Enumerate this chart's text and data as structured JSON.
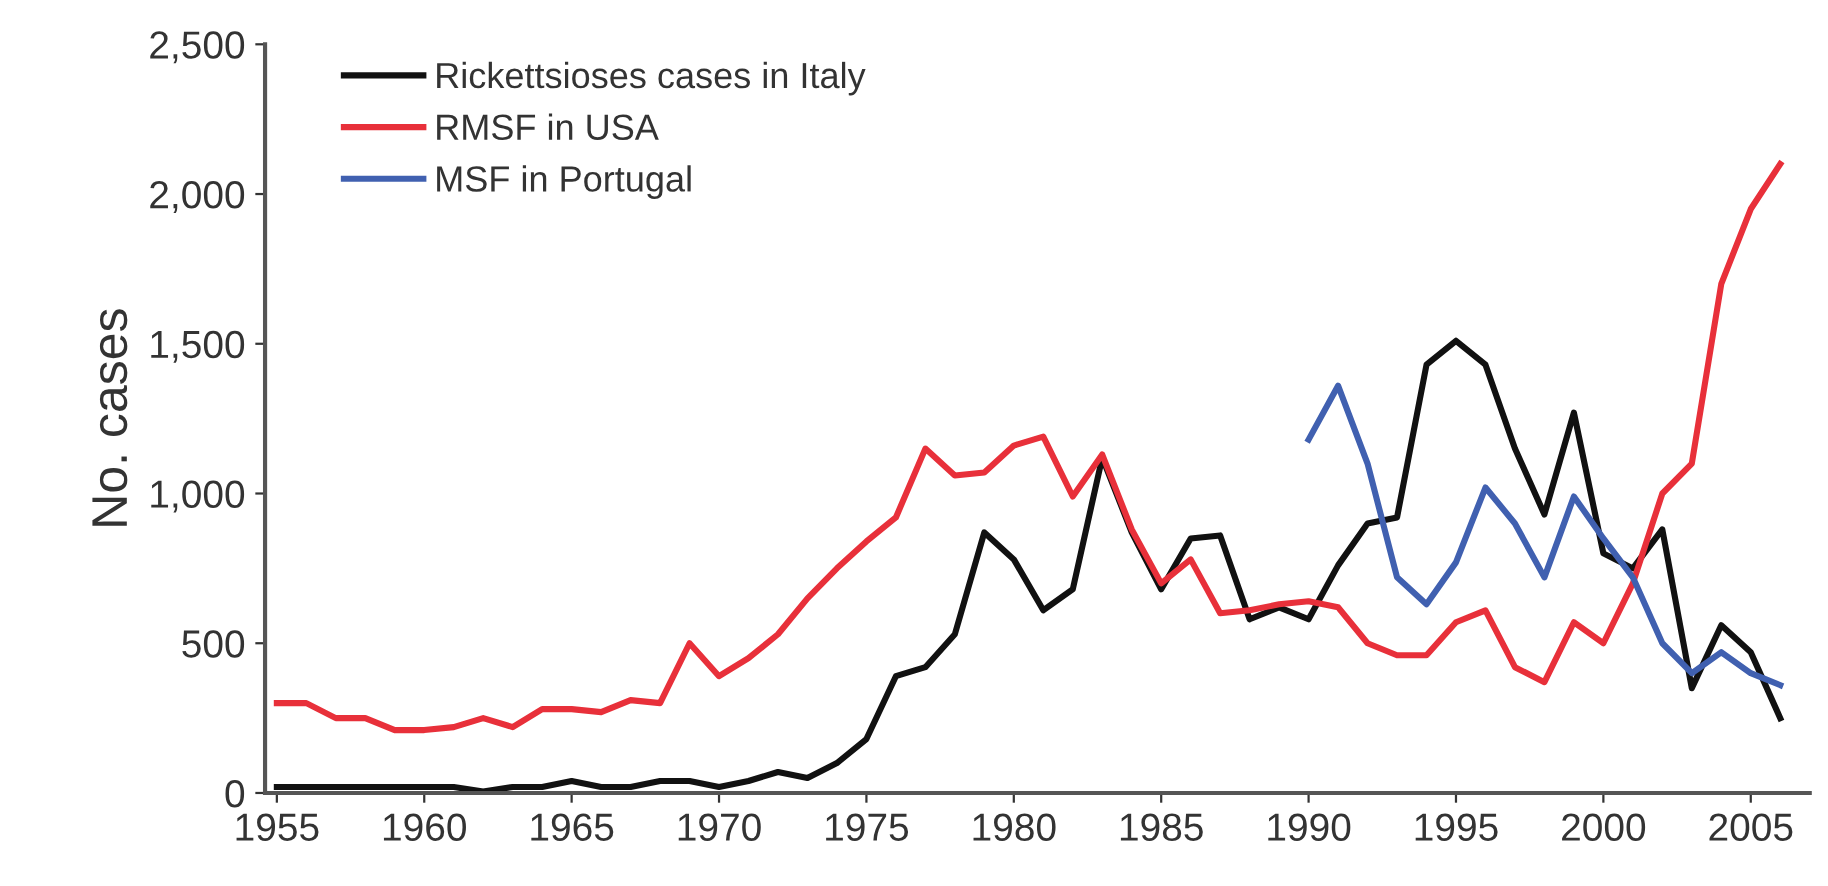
{
  "chart_data": {
    "type": "line",
    "ylabel": "No. cases",
    "x": [
      1955,
      1956,
      1957,
      1958,
      1959,
      1960,
      1961,
      1962,
      1963,
      1964,
      1965,
      1966,
      1967,
      1968,
      1969,
      1970,
      1971,
      1972,
      1973,
      1974,
      1975,
      1976,
      1977,
      1978,
      1979,
      1980,
      1981,
      1982,
      1983,
      1984,
      1985,
      1986,
      1987,
      1988,
      1989,
      1990,
      1991,
      1992,
      1993,
      1994,
      1995,
      1996,
      1997,
      1998,
      1999,
      2000,
      2001,
      2002,
      2003,
      2004,
      2005,
      2006
    ],
    "series": [
      {
        "name": "Rickettsioses cases in Italy",
        "color": "#111111",
        "values": [
          20,
          20,
          20,
          20,
          20,
          20,
          20,
          5,
          20,
          20,
          40,
          20,
          20,
          40,
          40,
          20,
          40,
          70,
          50,
          100,
          180,
          390,
          420,
          530,
          870,
          780,
          610,
          680,
          1120,
          870,
          680,
          850,
          860,
          580,
          620,
          580,
          760,
          900,
          920,
          1430,
          1510,
          1430,
          1150,
          930,
          1270,
          800,
          750,
          880,
          350,
          560,
          470,
          250
        ]
      },
      {
        "name": "RMSF in USA",
        "color": "#e8303a",
        "values": [
          300,
          300,
          250,
          250,
          210,
          210,
          220,
          250,
          220,
          280,
          280,
          270,
          310,
          300,
          500,
          390,
          450,
          530,
          650,
          750,
          840,
          920,
          1150,
          1060,
          1070,
          1160,
          1190,
          990,
          1130,
          880,
          700,
          780,
          600,
          610,
          630,
          640,
          620,
          500,
          460,
          460,
          570,
          610,
          420,
          370,
          570,
          500,
          700,
          1000,
          1100,
          1700,
          1950,
          2100
        ]
      },
      {
        "name": "MSF in Portugal",
        "color": "#4060b0",
        "values": [
          null,
          null,
          null,
          null,
          null,
          null,
          null,
          null,
          null,
          null,
          null,
          null,
          null,
          null,
          null,
          null,
          null,
          null,
          null,
          null,
          null,
          null,
          null,
          null,
          null,
          null,
          null,
          null,
          null,
          null,
          null,
          null,
          null,
          null,
          null,
          1180,
          1360,
          1100,
          720,
          630,
          770,
          1020,
          900,
          720,
          990,
          850,
          720,
          500,
          400,
          470,
          400,
          360
        ]
      }
    ],
    "xlim": [
      1954.6,
      2007
    ],
    "xticks": [
      1955,
      1960,
      1965,
      1970,
      1975,
      1980,
      1985,
      1990,
      1995,
      2000,
      2005
    ],
    "ylim": [
      0,
      2500
    ],
    "yticks": [
      0,
      {
        "value": 500,
        "label": "500"
      },
      {
        "value": 1000,
        "label": "1,000"
      },
      {
        "value": 1500,
        "label": "1,500"
      },
      {
        "value": 2000,
        "label": "2,000"
      },
      {
        "value": 2500,
        "label": "2,500"
      }
    ],
    "legend": "top left",
    "grid": false,
    "marker": "none",
    "line_style": "solid"
  }
}
